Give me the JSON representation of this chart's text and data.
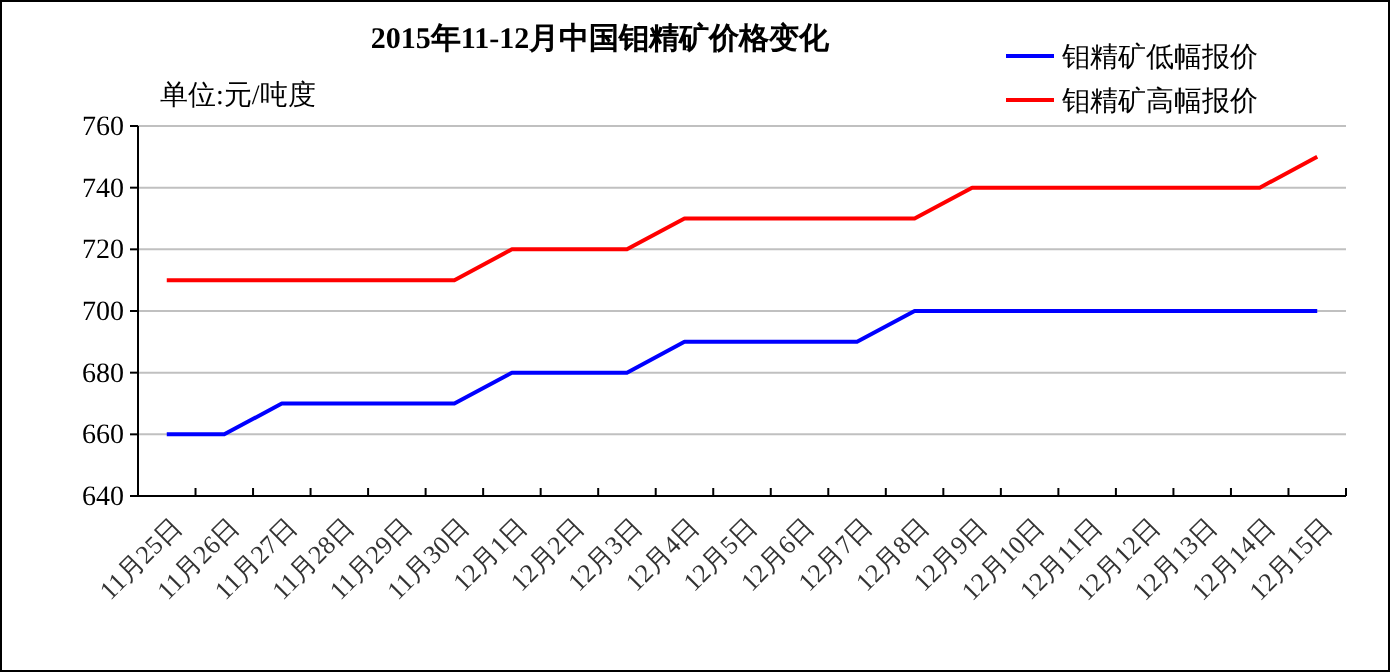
{
  "chart_data": {
    "type": "line",
    "title": "2015年11-12月中国钼精矿价格变化",
    "ylabel": "单位:元/吨度",
    "categories": [
      "11月25日",
      "11月26日",
      "11月27日",
      "11月28日",
      "11月29日",
      "11月30日",
      "12月1日",
      "12月2日",
      "12月3日",
      "12月4日",
      "12月5日",
      "12月6日",
      "12月7日",
      "12月8日",
      "12月9日",
      "12月10日",
      "12月11日",
      "12月12日",
      "12月13日",
      "12月14日",
      "12月15日"
    ],
    "series": [
      {
        "name": "钼精矿低幅报价",
        "color": "#0000ff",
        "values": [
          660,
          660,
          670,
          670,
          670,
          670,
          680,
          680,
          680,
          690,
          690,
          690,
          690,
          700,
          700,
          700,
          700,
          700,
          700,
          700,
          700
        ]
      },
      {
        "name": "钼精矿高幅报价",
        "color": "#ff0000",
        "values": [
          710,
          710,
          710,
          710,
          710,
          710,
          720,
          720,
          720,
          730,
          730,
          730,
          730,
          730,
          740,
          740,
          740,
          740,
          740,
          740,
          750
        ]
      }
    ],
    "ylim": [
      640,
      760
    ],
    "yticks": [
      640,
      660,
      680,
      700,
      720,
      740,
      760
    ],
    "grid": "y",
    "legend": "top right",
    "marker": "none",
    "line_style": "solid"
  }
}
